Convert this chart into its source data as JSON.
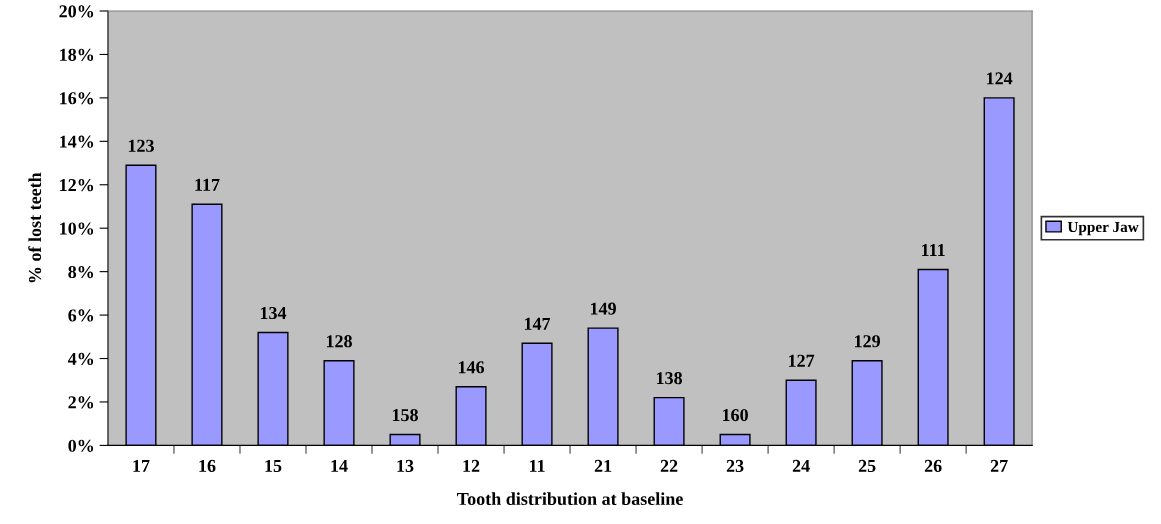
{
  "chart_data": {
    "type": "bar",
    "xlabel": "Tooth distribution at baseline",
    "ylabel": "% of lost teeth",
    "categories": [
      "17",
      "16",
      "15",
      "14",
      "13",
      "12",
      "11",
      "21",
      "22",
      "23",
      "24",
      "25",
      "26",
      "27"
    ],
    "series": [
      {
        "name": "Upper Jaw",
        "color": "#9999ff",
        "values": [
          12.9,
          11.1,
          5.2,
          3.9,
          0.5,
          2.7,
          4.7,
          5.4,
          2.2,
          0.5,
          3.0,
          3.9,
          8.1,
          16.0
        ]
      }
    ],
    "annotations": [
      {
        "text": "123",
        "x": "17",
        "y": 12.9
      },
      {
        "text": "117",
        "x": "16",
        "y": 11.1
      },
      {
        "text": "134",
        "x": "15",
        "y": 5.2
      },
      {
        "text": "128",
        "x": "14",
        "y": 3.9
      },
      {
        "text": "158",
        "x": "13",
        "y": 0.5
      },
      {
        "text": "146",
        "x": "12",
        "y": 2.7
      },
      {
        "text": "147",
        "x": "11",
        "y": 4.7
      },
      {
        "text": "149",
        "x": "21",
        "y": 5.4
      },
      {
        "text": "138",
        "x": "22",
        "y": 2.2
      },
      {
        "text": "160",
        "x": "23",
        "y": 0.5
      },
      {
        "text": "127",
        "x": "24",
        "y": 3.0
      },
      {
        "text": "129",
        "x": "25",
        "y": 3.9
      },
      {
        "text": "111",
        "x": "26",
        "y": 8.1
      },
      {
        "text": "124",
        "x": "27",
        "y": 16.0
      }
    ],
    "ylim": [
      0,
      20
    ],
    "yticks": [
      {
        "value": 0,
        "label": "0%"
      },
      {
        "value": 2,
        "label": "2%"
      },
      {
        "value": 4,
        "label": "4%"
      },
      {
        "value": 6,
        "label": "6%"
      },
      {
        "value": 8,
        "label": "8%"
      },
      {
        "value": 10,
        "label": "10%"
      },
      {
        "value": 12,
        "label": "12%"
      },
      {
        "value": 14,
        "label": "14%"
      },
      {
        "value": 16,
        "label": "16%"
      },
      {
        "value": 18,
        "label": "18%"
      },
      {
        "value": 20,
        "label": "20%"
      }
    ],
    "grid": false,
    "legend": "right"
  }
}
